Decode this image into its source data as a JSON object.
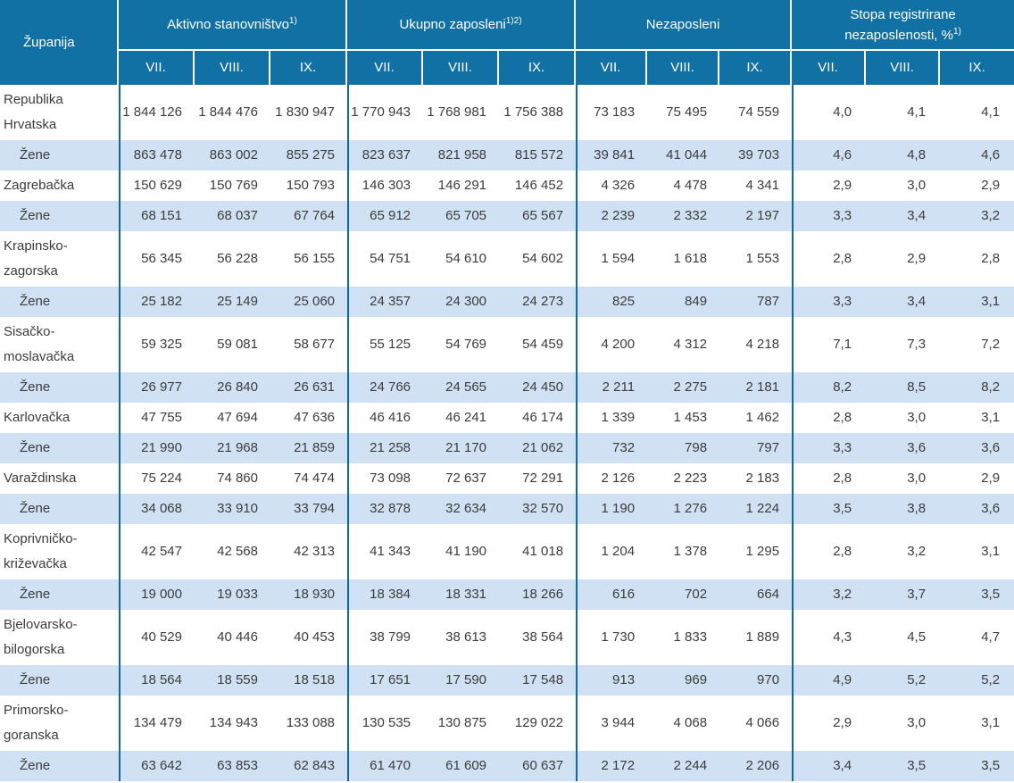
{
  "colors": {
    "header_bg": "#1171a5",
    "header_text": "#ffffff",
    "stripe_bg": "#cfe1f2",
    "grid_line": "#13679b",
    "body_text": "#3c3c3c"
  },
  "table": {
    "col1_header": "Županija",
    "groups": [
      {
        "id": "aktivno-stanovnistvo",
        "label": "Aktivno stanovništvo",
        "sup": "1)"
      },
      {
        "id": "ukupno-zaposleni",
        "label": "Ukupno zaposleni",
        "sup": "1)2)"
      },
      {
        "id": "nezaposleni",
        "label": "Nezaposleni",
        "sup": ""
      },
      {
        "id": "stopa-registrirane-nezaposlenosti",
        "label": "Stopa registrirane nezaposlenosti, %",
        "sup": "1)"
      }
    ],
    "subheaders": [
      "VII.",
      "VIII.",
      "IX."
    ],
    "rows": [
      {
        "name": "Republika Hrvatska",
        "indent": false,
        "values": [
          "1 844 126",
          "1 844 476",
          "1 830 947",
          "1 770 943",
          "1 768 981",
          "1 756 388",
          "73 183",
          "75 495",
          "74 559",
          "4,0",
          "4,1",
          "4,1"
        ]
      },
      {
        "name": "Žene",
        "indent": true,
        "values": [
          "863 478",
          "863 002",
          "855 275",
          "823 637",
          "821 958",
          "815 572",
          "39 841",
          "41 044",
          "39 703",
          "4,6",
          "4,8",
          "4,6"
        ]
      },
      {
        "name": "Zagrebačka",
        "indent": false,
        "values": [
          "150 629",
          "150 769",
          "150 793",
          "146 303",
          "146 291",
          "146 452",
          "4 326",
          "4 478",
          "4 341",
          "2,9",
          "3,0",
          "2,9"
        ]
      },
      {
        "name": "Žene",
        "indent": true,
        "values": [
          "68 151",
          "68 037",
          "67 764",
          "65 912",
          "65 705",
          "65 567",
          "2 239",
          "2 332",
          "2 197",
          "3,3",
          "3,4",
          "3,2"
        ]
      },
      {
        "name": "Krapinsko-zagorska",
        "indent": false,
        "values": [
          "56 345",
          "56 228",
          "56 155",
          "54 751",
          "54 610",
          "54 602",
          "1 594",
          "1 618",
          "1 553",
          "2,8",
          "2,9",
          "2,8"
        ]
      },
      {
        "name": "Žene",
        "indent": true,
        "values": [
          "25 182",
          "25 149",
          "25 060",
          "24 357",
          "24 300",
          "24 273",
          "825",
          "849",
          "787",
          "3,3",
          "3,4",
          "3,1"
        ]
      },
      {
        "name": "Sisačko-moslavačka",
        "indent": false,
        "values": [
          "59 325",
          "59 081",
          "58 677",
          "55 125",
          "54 769",
          "54 459",
          "4 200",
          "4 312",
          "4 218",
          "7,1",
          "7,3",
          "7,2"
        ]
      },
      {
        "name": "Žene",
        "indent": true,
        "values": [
          "26 977",
          "26 840",
          "26 631",
          "24 766",
          "24 565",
          "24 450",
          "2 211",
          "2 275",
          "2 181",
          "8,2",
          "8,5",
          "8,2"
        ]
      },
      {
        "name": "Karlovačka",
        "indent": false,
        "values": [
          "47 755",
          "47 694",
          "47 636",
          "46 416",
          "46 241",
          "46 174",
          "1 339",
          "1 453",
          "1 462",
          "2,8",
          "3,0",
          "3,1"
        ]
      },
      {
        "name": "Žene",
        "indent": true,
        "values": [
          "21 990",
          "21 968",
          "21 859",
          "21 258",
          "21 170",
          "21 062",
          "732",
          "798",
          "797",
          "3,3",
          "3,6",
          "3,6"
        ]
      },
      {
        "name": "Varaždinska",
        "indent": false,
        "values": [
          "75 224",
          "74 860",
          "74 474",
          "73 098",
          "72 637",
          "72 291",
          "2 126",
          "2 223",
          "2 183",
          "2,8",
          "3,0",
          "2,9"
        ]
      },
      {
        "name": "Žene",
        "indent": true,
        "values": [
          "34 068",
          "33 910",
          "33 794",
          "32 878",
          "32 634",
          "32 570",
          "1 190",
          "1 276",
          "1 224",
          "3,5",
          "3,8",
          "3,6"
        ]
      },
      {
        "name": "Koprivničko-križevačka",
        "indent": false,
        "values": [
          "42 547",
          "42 568",
          "42 313",
          "41 343",
          "41 190",
          "41 018",
          "1 204",
          "1 378",
          "1 295",
          "2,8",
          "3,2",
          "3,1"
        ]
      },
      {
        "name": "Žene",
        "indent": true,
        "values": [
          "19 000",
          "19 033",
          "18 930",
          "18 384",
          "18 331",
          "18 266",
          "616",
          "702",
          "664",
          "3,2",
          "3,7",
          "3,5"
        ]
      },
      {
        "name": "Bjelovarsko-bilogorska",
        "indent": false,
        "values": [
          "40 529",
          "40 446",
          "40 453",
          "38 799",
          "38 613",
          "38 564",
          "1 730",
          "1 833",
          "1 889",
          "4,3",
          "4,5",
          "4,7"
        ]
      },
      {
        "name": "Žene",
        "indent": true,
        "values": [
          "18 564",
          "18 559",
          "18 518",
          "17 651",
          "17 590",
          "17 548",
          "913",
          "969",
          "970",
          "4,9",
          "5,2",
          "5,2"
        ]
      },
      {
        "name": "Primorsko-goranska",
        "indent": false,
        "values": [
          "134 479",
          "134 943",
          "133 088",
          "130 535",
          "130 875",
          "129 022",
          "3 944",
          "4 068",
          "4 066",
          "2,9",
          "3,0",
          "3,1"
        ]
      },
      {
        "name": "Žene",
        "indent": true,
        "values": [
          "63 642",
          "63 853",
          "62 843",
          "61 470",
          "61 609",
          "60 637",
          "2 172",
          "2 244",
          "2 206",
          "3,4",
          "3,5",
          "3,5"
        ]
      }
    ]
  }
}
